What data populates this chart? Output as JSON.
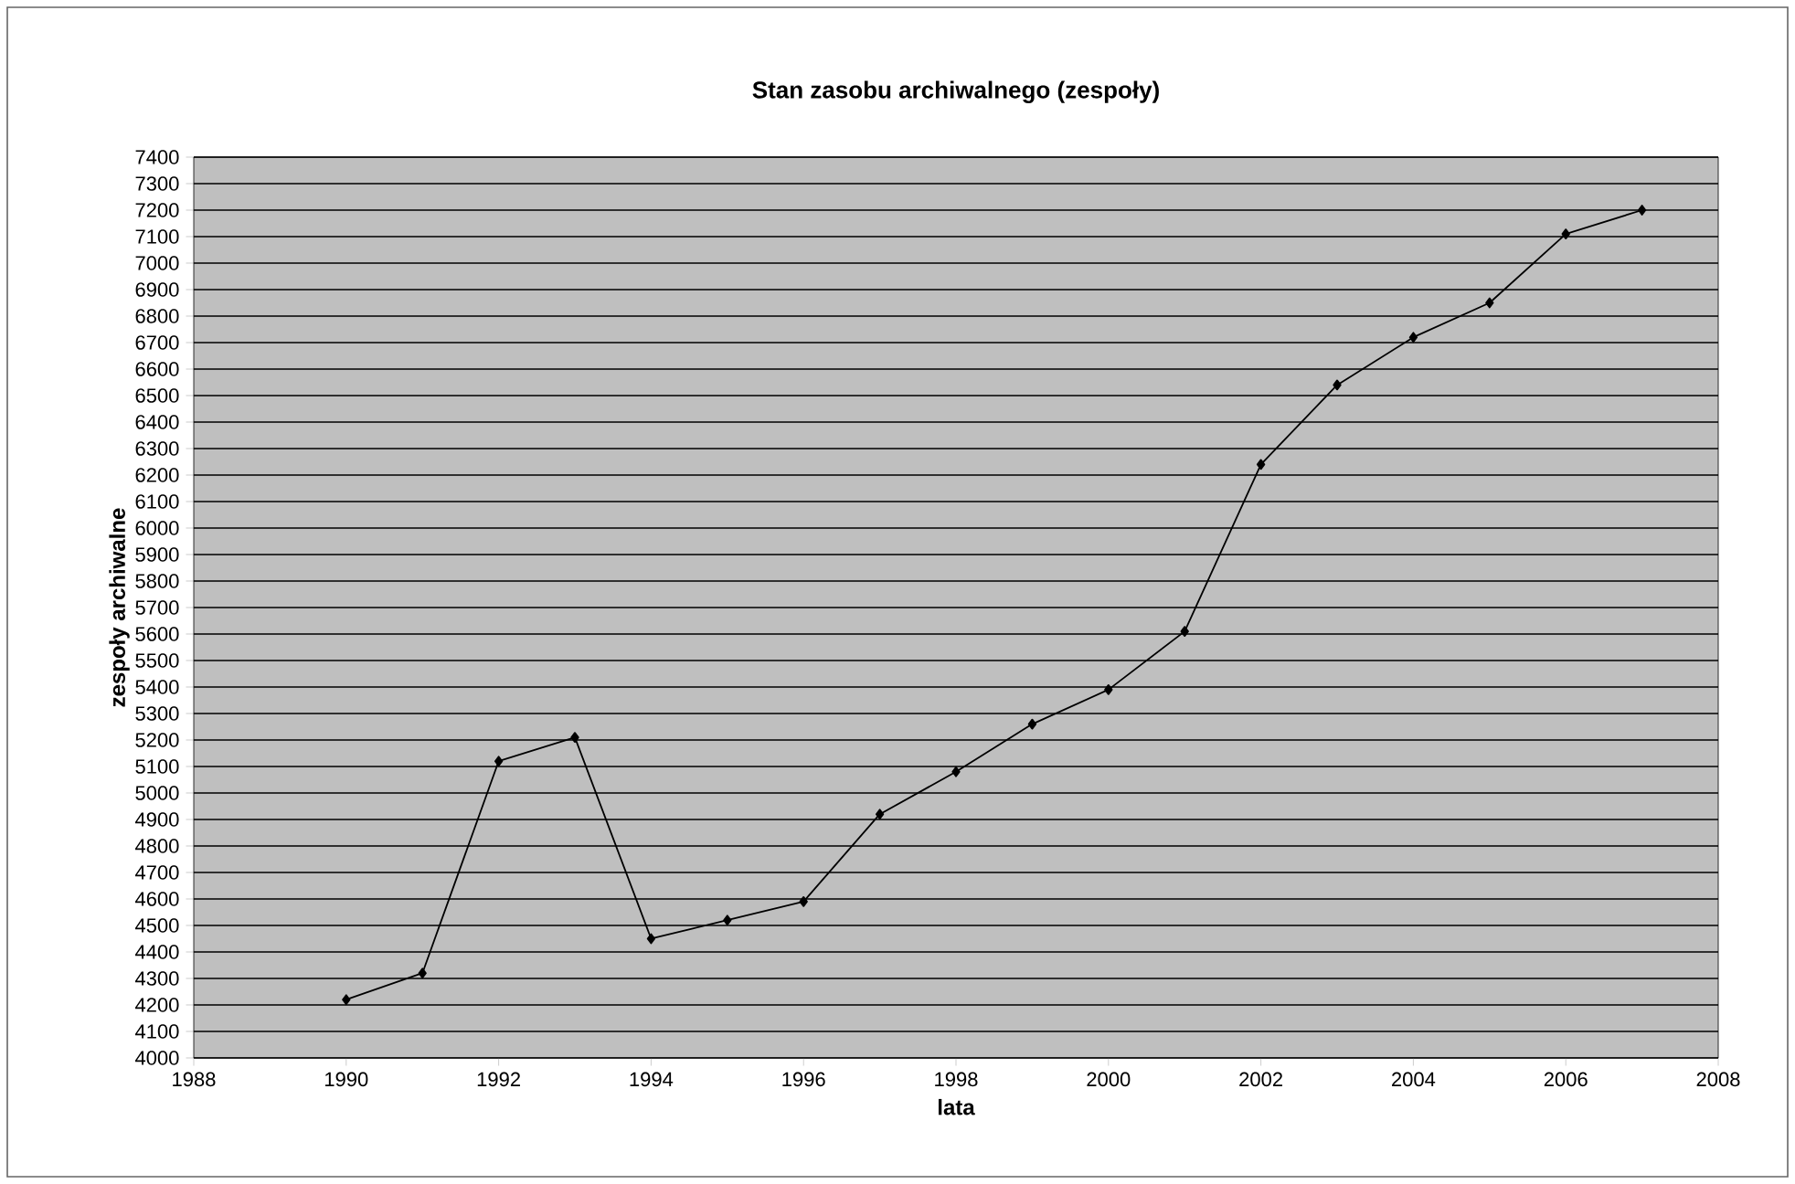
{
  "chart_data": {
    "type": "line",
    "title": "Stan zasobu archiwalnego (zespoły)",
    "xlabel": "lata",
    "ylabel": "zespoły archiwalne",
    "x": [
      1990,
      1991,
      1992,
      1993,
      1994,
      1995,
      1996,
      1997,
      1998,
      1999,
      2000,
      2001,
      2002,
      2003,
      2004,
      2005,
      2006,
      2007
    ],
    "series": [
      {
        "color": "#000000",
        "values": [
          4220,
          4320,
          5120,
          5210,
          4450,
          4520,
          4590,
          4920,
          5080,
          5260,
          5390,
          5610,
          6240,
          6540,
          6720,
          6850,
          7110,
          7200
        ]
      }
    ],
    "xlim": [
      1988,
      2008
    ],
    "xticks": [
      1988,
      1990,
      1992,
      1994,
      1996,
      1998,
      2000,
      2002,
      2004,
      2006,
      2008
    ],
    "ylim": [
      4000,
      7400
    ],
    "yticks": [
      4000,
      4100,
      4200,
      4300,
      4400,
      4500,
      4600,
      4700,
      4800,
      4900,
      5000,
      5100,
      5200,
      5300,
      5400,
      5500,
      5600,
      5700,
      5800,
      5900,
      6000,
      6100,
      6200,
      6300,
      6400,
      6500,
      6600,
      6700,
      6800,
      6900,
      7000,
      7100,
      7200,
      7300,
      7400
    ],
    "grid": "y",
    "marker": "diamond",
    "line_style": "solid"
  }
}
